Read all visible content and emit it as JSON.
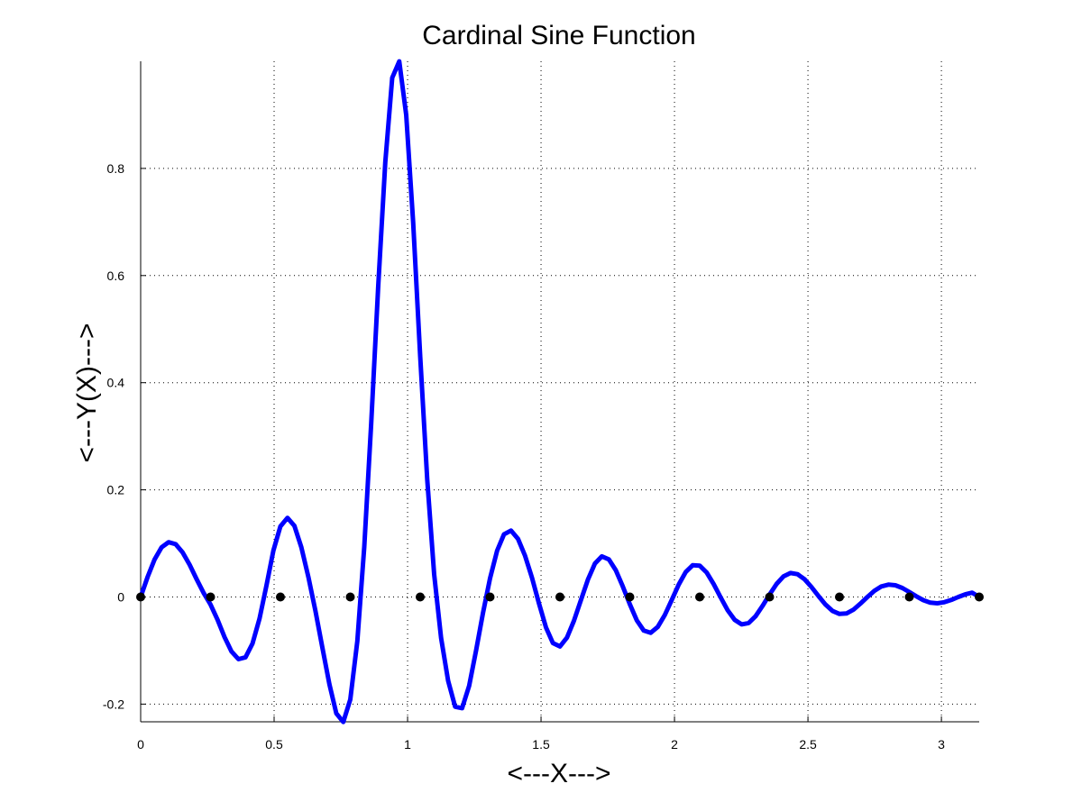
{
  "chart_data": {
    "type": "line",
    "title": "Cardinal Sine Function",
    "xlabel": "<---X--->",
    "ylabel": "<---Y(X)--->",
    "xlim": [
      0,
      3.14159
    ],
    "ylim": [
      -0.233,
      1.0
    ],
    "grid": true,
    "x_ticks": [
      0,
      0.5,
      1,
      1.5,
      2,
      2.5,
      3
    ],
    "x_tick_labels": [
      "0",
      "0.5",
      "1",
      "1.5",
      "2",
      "2.5",
      "3"
    ],
    "y_ticks": [
      -0.2,
      0,
      0.2,
      0.4,
      0.6,
      0.8
    ],
    "y_tick_labels": [
      "-0.2",
      "0",
      "0.2",
      "0.4",
      "0.6",
      "0.8"
    ],
    "series": [
      {
        "values_description": "",
        "x": [
          0,
          0.0262,
          0.0524,
          0.0785,
          0.1047,
          0.1309,
          0.1571,
          0.1833,
          0.2094,
          0.2356,
          0.2618,
          0.288,
          0.3142,
          0.3403,
          0.3665,
          0.3927,
          0.4189,
          0.4451,
          0.4712,
          0.4974,
          0.5236,
          0.5498,
          0.576,
          0.6021,
          0.6283,
          0.6545,
          0.6807,
          0.7069,
          0.733,
          0.7592,
          0.7854,
          0.8116,
          0.8378,
          0.8639,
          0.8901,
          0.9163,
          0.9425,
          0.9687,
          0.9948,
          1.021,
          1.0472,
          1.0734,
          1.0996,
          1.1257,
          1.1519,
          1.1781,
          1.2043,
          1.2305,
          1.2566,
          1.2828,
          1.309,
          1.3352,
          1.3614,
          1.3875,
          1.4137,
          1.4399,
          1.4661,
          1.4923,
          1.5184,
          1.5446,
          1.5708,
          1.597,
          1.6232,
          1.6493,
          1.6755,
          1.7017,
          1.7279,
          1.7541,
          1.7802,
          1.8064,
          1.8326,
          1.8588,
          1.885,
          1.9111,
          1.9373,
          1.9635,
          1.9897,
          2.0159,
          2.042,
          2.0682,
          2.0944,
          2.1206,
          2.1468,
          2.1729,
          2.1991,
          2.2253,
          2.2515,
          2.2777,
          2.3038,
          2.33,
          2.3562,
          2.3824,
          2.4086,
          2.4347,
          2.4609,
          2.4871,
          2.5133,
          2.5395,
          2.5656,
          2.5918,
          2.618,
          2.6442,
          2.6704,
          2.6965,
          2.7227,
          2.7489,
          2.7751,
          2.8013,
          2.8274,
          2.8536,
          2.8798,
          2.906,
          2.9322,
          2.9583,
          2.9845,
          3.0107,
          3.0369,
          3.0631,
          3.0892,
          3.1154,
          3.1416
        ],
        "y": [
          0,
          0.0378,
          0.0703,
          0.0927,
          0.1023,
          0.0986,
          0.0832,
          0.0602,
          0.0335,
          0.0079,
          -0.0141,
          -0.0426,
          -0.0747,
          -0.1016,
          -0.1161,
          -0.1125,
          -0.0871,
          -0.0405,
          0.0212,
          0.0866,
          0.1319,
          0.1476,
          0.1329,
          0.0929,
          0.0374,
          -0.0258,
          -0.0943,
          -0.1627,
          -0.2173,
          -0.2334,
          -0.1913,
          -0.0825,
          0.0936,
          0.3247,
          0.5811,
          0.8113,
          0.9692,
          0.9999,
          0.9,
          0.7,
          0.45,
          0.22,
          0.0422,
          -0.0766,
          -0.1565,
          -0.2049,
          -0.2076,
          -0.1658,
          -0.1,
          -0.0295,
          0.0349,
          0.0862,
          0.1171,
          0.1239,
          0.1084,
          0.077,
          0.0359,
          -0.0123,
          -0.0567,
          -0.0859,
          -0.0923,
          -0.0759,
          -0.0446,
          -0.0063,
          0.0322,
          0.0624,
          0.0758,
          0.0702,
          0.0497,
          0.0196,
          -0.0135,
          -0.0438,
          -0.0628,
          -0.0668,
          -0.0559,
          -0.0336,
          -0.0055,
          0.0233,
          0.0465,
          0.0592,
          0.0585,
          0.0455,
          0.0241,
          -0.0007,
          -0.0248,
          -0.0427,
          -0.0511,
          -0.0486,
          -0.0359,
          -0.0166,
          0.0047,
          0.0244,
          0.0385,
          0.0447,
          0.0426,
          0.0331,
          0.0184,
          0.0017,
          -0.0141,
          -0.0259,
          -0.0317,
          -0.0308,
          -0.0238,
          -0.0125,
          0.0,
          0.0115,
          0.0196,
          0.0231,
          0.0218,
          0.0168,
          0.0093,
          0.0012,
          -0.0059,
          -0.0106,
          -0.0118,
          -0.0098,
          -0.0055,
          0.0,
          0.0049,
          0.008,
          0.0
        ],
        "color": "#0000ff",
        "line_width": 5
      }
    ],
    "markers": {
      "x": [
        0,
        0.2618,
        0.5236,
        0.7854,
        1.0472,
        1.309,
        1.5708,
        1.8326,
        2.0944,
        2.3562,
        2.618,
        2.8798,
        3.1416
      ],
      "y": [
        0,
        0,
        0,
        0,
        0,
        0,
        0,
        0,
        0,
        0,
        0,
        0,
        0
      ],
      "color": "#000000"
    }
  }
}
